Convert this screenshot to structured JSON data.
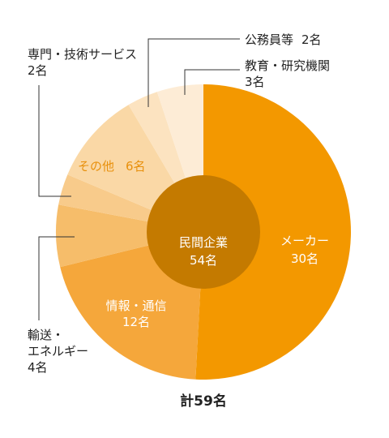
{
  "chart_data": {
    "type": "pie",
    "total_label": "計59名",
    "inner": {
      "label": "民間企業",
      "value_label": "54名",
      "value": 54
    },
    "slices": [
      {
        "name": "メーカー",
        "value": 30,
        "value_label": "30名",
        "color": "#f39800"
      },
      {
        "name": "情報・通信",
        "value": 12,
        "value_label": "12名",
        "color": "#f5a73b"
      },
      {
        "name": "輸送・エネルギー",
        "value": 4,
        "value_label": "4名",
        "color": "#f6bd6a"
      },
      {
        "name": "専門・技術サービス",
        "value": 2,
        "value_label": "2名",
        "color": "#f8cb8b"
      },
      {
        "name": "その他",
        "value": 6,
        "value_label": "6名",
        "color": "#fad8a6"
      },
      {
        "name": "公務員等",
        "value": 2,
        "value_label": "2名",
        "color": "#fce3c0"
      },
      {
        "name": "教育・研究機関",
        "value": 3,
        "value_label": "3名",
        "color": "#fdecd6"
      }
    ],
    "inner_color": "#c47a00"
  }
}
